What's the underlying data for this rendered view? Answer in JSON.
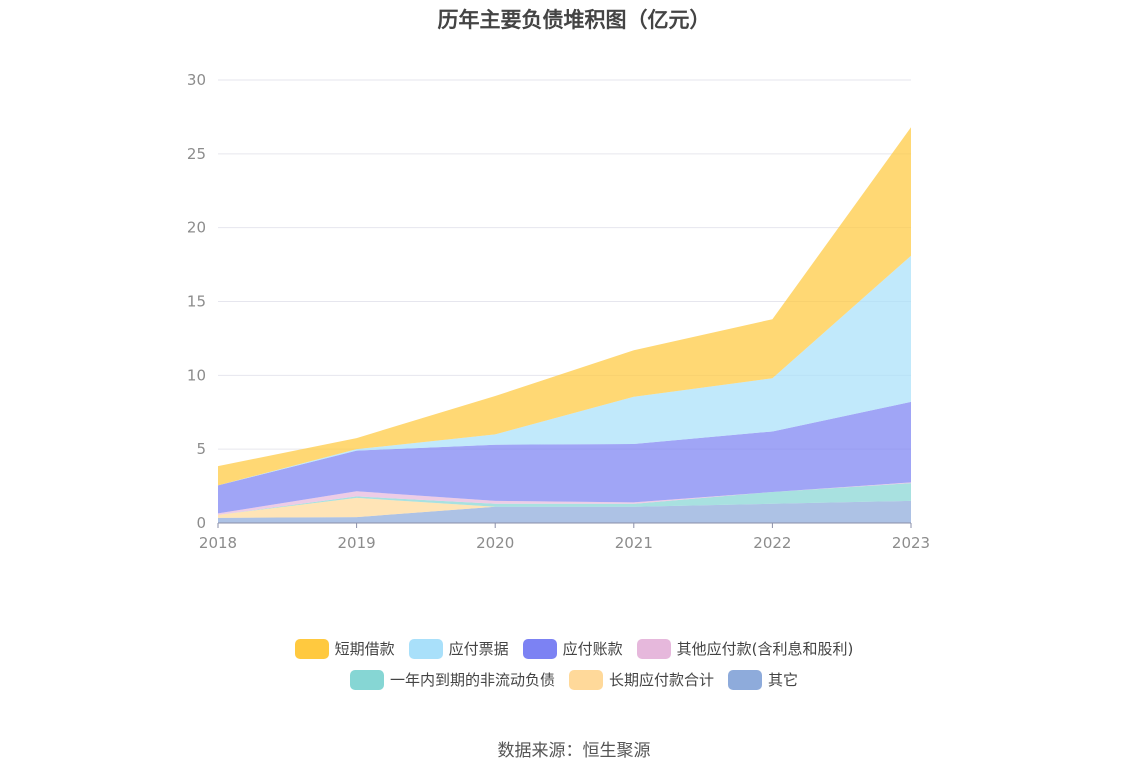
{
  "chart_data": {
    "type": "area",
    "stacked": true,
    "title": "历年主要负债堆积图（亿元）",
    "categories": [
      "2018",
      "2019",
      "2020",
      "2021",
      "2022",
      "2023"
    ],
    "ylim": [
      0,
      30
    ],
    "yticks": [
      0,
      5,
      10,
      15,
      20,
      25,
      30
    ],
    "grid": true,
    "legend_position": "bottom",
    "series": [
      {
        "name": "其它",
        "color": "#8eabdb",
        "values": [
          0.35,
          0.4,
          1.1,
          1.1,
          1.3,
          1.5
        ]
      },
      {
        "name": "长期应付款合计",
        "color": "#ffd99a",
        "values": [
          0.2,
          1.3,
          0.0,
          0.0,
          0.0,
          0.0
        ]
      },
      {
        "name": "一年内到期的非流动负债",
        "color": "#86d6d4",
        "values": [
          0.0,
          0.1,
          0.2,
          0.2,
          0.8,
          1.2
        ]
      },
      {
        "name": "其他应付款(含利息和股利)",
        "color": "#e6b8dc",
        "values": [
          0.1,
          0.35,
          0.2,
          0.1,
          0.0,
          0.05
        ]
      },
      {
        "name": "应付账款",
        "color": "#7c82f3",
        "values": [
          1.9,
          2.75,
          3.8,
          3.95,
          4.1,
          5.45
        ]
      },
      {
        "name": "应付票据",
        "color": "#a9e0fa",
        "values": [
          0.0,
          0.1,
          0.7,
          3.2,
          3.6,
          9.9
        ]
      },
      {
        "name": "短期借款",
        "color": "#ffc93f",
        "values": [
          1.3,
          0.75,
          2.6,
          3.15,
          4.0,
          8.7
        ]
      }
    ]
  },
  "legend_order": [
    "短期借款",
    "应付票据",
    "应付账款",
    "其他应付款(含利息和股利)",
    "一年内到期的非流动负债",
    "长期应付款合计",
    "其它"
  ],
  "source": "数据来源：恒生聚源"
}
